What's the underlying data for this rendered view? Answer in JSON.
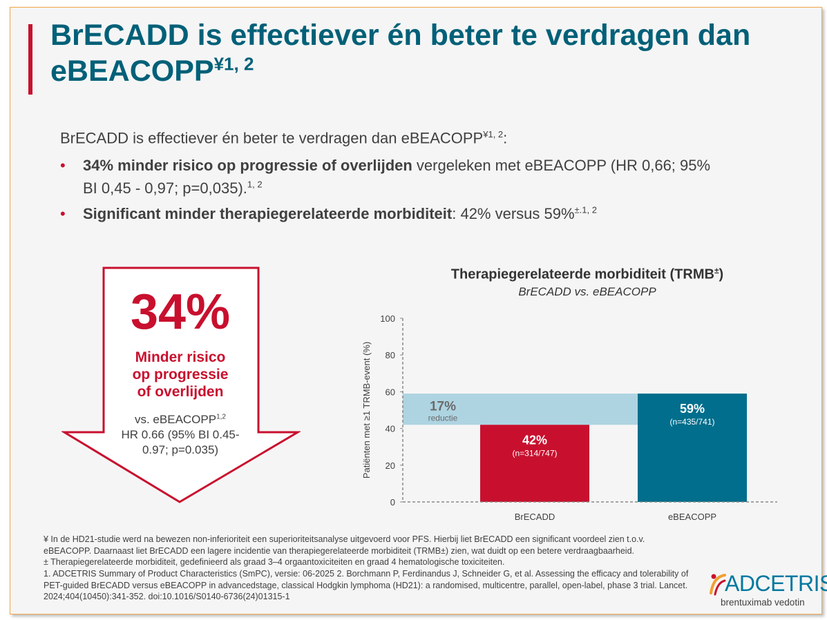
{
  "title": {
    "main": "BrECADD is effectiever én beter te verdragen dan eBEACOPP",
    "sup": "¥1, 2"
  },
  "intro": {
    "text": "BrECADD is effectiever én beter te verdragen dan eBEACOPP",
    "sup": "¥1, 2",
    "end": ":"
  },
  "bullets": [
    {
      "bold": "34% minder risico op progressie of overlijden",
      "text": " vergeleken met eBEACOPP (HR 0,66; 95% BI 0,45 - 0,97; p=0,035).",
      "sup": "1, 2"
    },
    {
      "bold": "Significant minder therapiegerelateerde morbiditeit",
      "text": ": 42% versus 59%",
      "sup": "±.1, 2"
    }
  ],
  "arrow": {
    "percent": "34%",
    "label_lines": [
      "Minder risico",
      "op progressie",
      "of overlijden"
    ],
    "vs": "vs. eBEACOPP",
    "vs_sup": "1,2",
    "hr_lines": [
      "HR 0.66 (95% BI 0.45-",
      "0.97; p=0.035)"
    ]
  },
  "chart_data": {
    "type": "bar",
    "title": "Therapiegerelateerde morbiditeit (TRMB",
    "title_sup": "±",
    "title_end": ")",
    "subtitle": "BrECADD vs. eBEACOPP",
    "ylabel": "Patiënten met ≥1 TRMB-event (%)",
    "ylim": [
      0,
      100
    ],
    "yticks": [
      0,
      20,
      40,
      60,
      80,
      100
    ],
    "categories": [
      "BrECADD",
      "eBEACOPP"
    ],
    "values": [
      42,
      59
    ],
    "value_labels": [
      "42%",
      "59%"
    ],
    "n_labels": [
      "(n=314/747)",
      "(n=435/741)"
    ],
    "colors": [
      "#c8102e",
      "#006e8c"
    ],
    "reduction": {
      "from": 42,
      "to": 59,
      "label": "17%",
      "sublabel": "reductie",
      "color": "#aed4e2"
    }
  },
  "footnotes": [
    "¥ In de HD21-studie werd na bewezen non-inferioriteit een superioriteitsanalyse uitgevoerd voor PFS. Hierbij liet BrECADD een significant voordeel zien t.o.v. eBEACOPP. Daarnaast liet BrECADD een lagere incidentie van therapiegerelateerde morbiditeit (TRMB±) zien, wat duidt op een betere verdraagbaarheid.",
    "± Therapiegerelateerde morbiditeit, gedefinieerd als graad 3–4 orgaantoxiciteiten en graad 4 hematologische toxiciteiten.",
    "1. ADCETRIS Summary of Product Characteristics (SmPC), versie: 06-2025 2. Borchmann P, Ferdinandus J, Schneider G, et al. Assessing the efficacy and tolerability of PET-guided BrECADD versus eBEACOPP in advancedstage, classical Hodgkin lymphoma (HD21): a randomised, multicentre, parallel, open-label, phase 3 trial. Lancet. 2024;404(10450):341-352. doi:10.1016/S0140-6736(24)01315-1"
  ],
  "logo": {
    "brand": "ADCETRIS",
    "registered": "®",
    "tagline": "brentuximab vedotin",
    "colors": {
      "text": "#0078a0",
      "orange": "#f0a030",
      "red": "#c8102e"
    }
  },
  "colors": {
    "title": "#006078",
    "accent_red": "#c8102e",
    "slide_border": "#f0a848"
  }
}
